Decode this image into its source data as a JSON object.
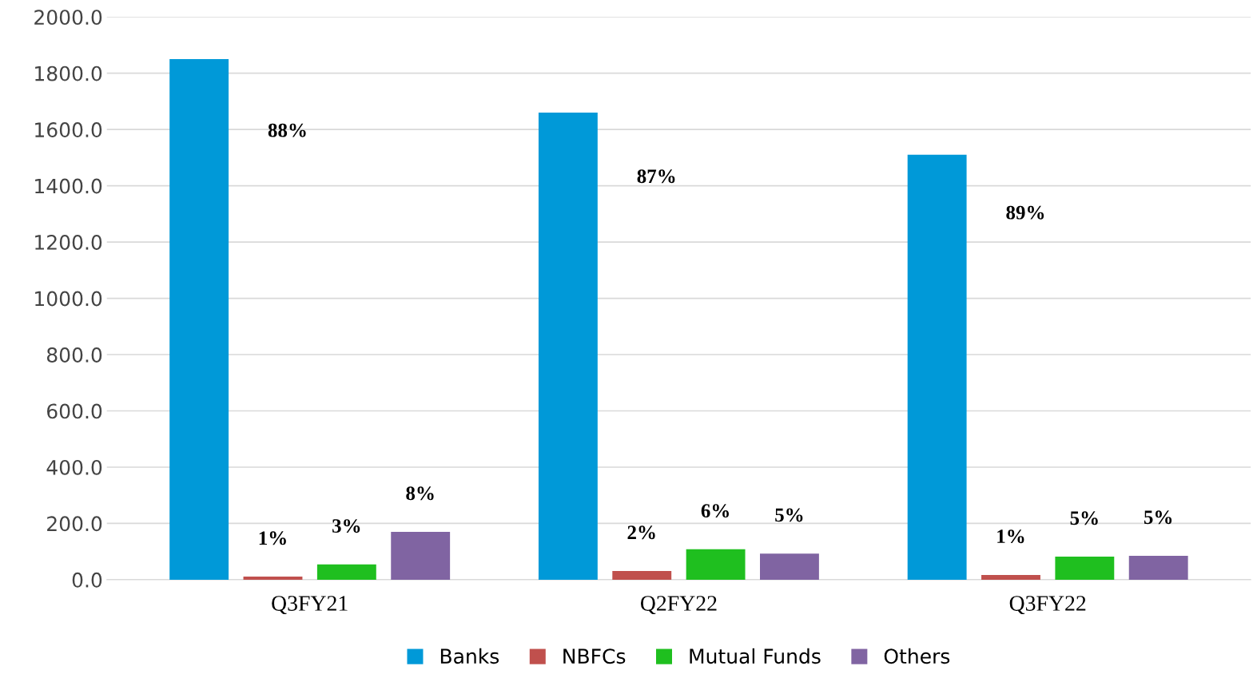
{
  "chart_data": {
    "type": "bar",
    "categories": [
      "Q3FY21",
      "Q2FY22",
      "Q3FY22"
    ],
    "series": [
      {
        "name": "Banks",
        "color": "#0099d8",
        "values": [
          1850,
          1660,
          1510
        ]
      },
      {
        "name": "NBFCs",
        "color": "#c0504d",
        "values": [
          11,
          31,
          17
        ]
      },
      {
        "name": "Mutual Funds",
        "color": "#1fbf1f",
        "values": [
          54,
          108,
          82
        ]
      },
      {
        "name": "Others",
        "color": "#8064a2",
        "values": [
          170,
          93,
          85
        ]
      }
    ],
    "annotations": [
      "88%",
      "87%",
      "89%",
      "1%",
      "2%",
      "1%",
      "3%",
      "6%",
      "5%",
      "8%",
      "5%",
      "5%"
    ],
    "ylim": [
      0,
      2000
    ],
    "yticks": [
      {
        "value": 0,
        "label": "0.0"
      },
      {
        "value": 200,
        "label": "200.0"
      },
      {
        "value": 400,
        "label": "400.0"
      },
      {
        "value": 600,
        "label": "600.0"
      },
      {
        "value": 800,
        "label": "800.0"
      },
      {
        "value": 1000,
        "label": "1000.0"
      },
      {
        "value": 1200,
        "label": "1200.0"
      },
      {
        "value": 1400,
        "label": "1400.0"
      },
      {
        "value": 1600,
        "label": "1600.0"
      },
      {
        "value": 1800,
        "label": "1800.0"
      },
      {
        "value": 2000,
        "label": "2000.0"
      }
    ],
    "grid": "y",
    "legend": "bottom"
  }
}
